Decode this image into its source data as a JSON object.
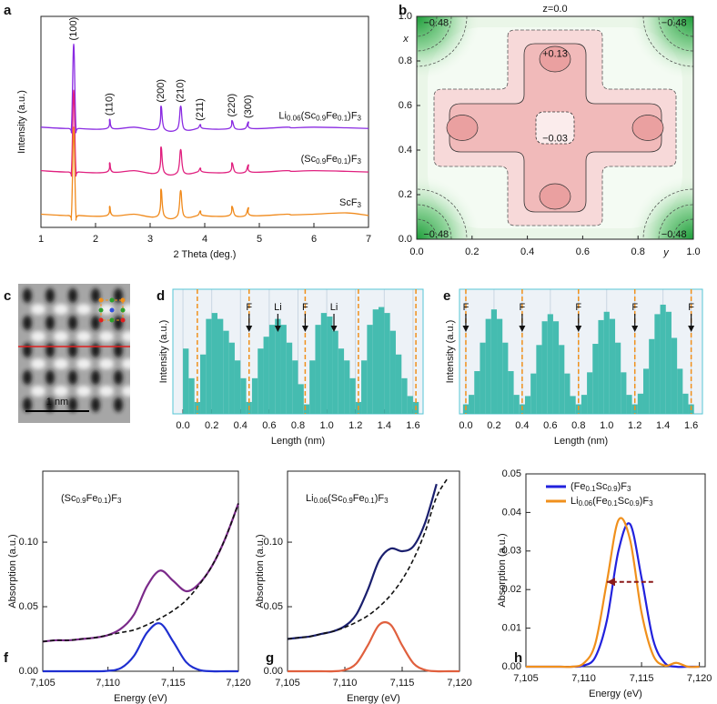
{
  "chart_data": [
    {
      "label": "a",
      "type": "line",
      "xlabel": "2 Theta (deg.)",
      "ylabel": "Intensity (a.u.)",
      "xlim": [
        1,
        7
      ],
      "ylim": [
        0,
        16
      ],
      "xticks": [
        1,
        2,
        3,
        4,
        5,
        6,
        7
      ],
      "x": [
        1,
        1.5,
        1.56,
        1.6,
        1.64,
        1.7,
        2.2,
        2.26,
        2.32,
        2.7,
        3.14,
        3.2,
        3.26,
        3.5,
        3.56,
        3.62,
        3.86,
        3.92,
        3.98,
        4.44,
        4.5,
        4.56,
        4.74,
        4.8,
        4.86,
        5.5,
        5.6,
        6.0,
        6.6,
        7.0
      ],
      "series": [
        {
          "name": "Li0.06(Sc0.9Fe0.1)F3",
          "color": "#8a2be2",
          "values": [
            7.6,
            7.5,
            7.7,
            13.9,
            7.7,
            7.5,
            7.5,
            8.2,
            7.5,
            7.6,
            7.5,
            9.2,
            7.5,
            7.5,
            9.2,
            7.5,
            7.5,
            7.8,
            7.5,
            7.5,
            8.1,
            7.5,
            7.5,
            8.0,
            7.5,
            7.6,
            7.55,
            7.6,
            7.55,
            7.5
          ]
        },
        {
          "name": "(Sc0.9Fe0.1)F3",
          "color": "#e0207f",
          "values": [
            4.3,
            4.2,
            4.4,
            10.4,
            4.4,
            4.2,
            4.2,
            4.9,
            4.2,
            4.3,
            4.2,
            6.1,
            4.2,
            4.2,
            5.9,
            4.2,
            4.2,
            4.5,
            4.2,
            4.2,
            4.9,
            4.2,
            4.2,
            4.75,
            4.2,
            4.3,
            4.25,
            4.3,
            4.25,
            4.2
          ]
        },
        {
          "name": "ScF3",
          "color": "#f08a1c",
          "values": [
            1.0,
            0.9,
            1.1,
            7.6,
            1.1,
            0.9,
            0.9,
            1.6,
            0.9,
            1.0,
            0.9,
            2.9,
            0.9,
            0.9,
            2.8,
            0.9,
            0.9,
            1.25,
            0.9,
            0.9,
            1.6,
            0.9,
            0.9,
            1.5,
            0.9,
            1.0,
            0.95,
            1.0,
            1.1,
            0.9
          ]
        }
      ],
      "peak_labels": [
        {
          "text": "(100)",
          "x": 1.6
        },
        {
          "text": "(110)",
          "x": 2.26
        },
        {
          "text": "(200)",
          "x": 3.2
        },
        {
          "text": "(210)",
          "x": 3.56
        },
        {
          "text": "(211)",
          "x": 3.92
        },
        {
          "text": "(220)",
          "x": 4.5
        },
        {
          "text": "(300)",
          "x": 4.8
        }
      ]
    },
    {
      "label": "b",
      "type": "contour",
      "title": "z=0.0",
      "xlabel": "y",
      "ylabel": "x",
      "xlim": [
        0,
        1
      ],
      "ylim": [
        0,
        1
      ],
      "xticks": [
        {
          "value": 0,
          "label": "0.0"
        },
        0.2,
        0.4,
        0.6,
        0.8,
        {
          "value": 1,
          "label": "1.0"
        }
      ],
      "yticks": [
        {
          "value": 0,
          "label": "0.0"
        },
        0.2,
        0.4,
        0.6,
        0.8,
        {
          "value": 1,
          "label": "1.0"
        }
      ],
      "contour_labels": [
        {
          "text": "−0.48",
          "at": [
            0.07,
            0.97
          ]
        },
        {
          "text": "−0.48",
          "at": [
            0.93,
            0.97
          ]
        },
        {
          "text": "−0.48",
          "at": [
            0.07,
            0.02
          ]
        },
        {
          "text": "−0.48",
          "at": [
            0.93,
            0.02
          ]
        },
        {
          "text": "+0.13",
          "at": [
            0.5,
            0.83
          ]
        },
        {
          "text": "−0.03",
          "at": [
            0.5,
            0.45
          ]
        }
      ]
    },
    {
      "label": "c",
      "type": "image",
      "scale_label": "1 nm"
    },
    {
      "label": "d",
      "type": "histogram",
      "xlabel": "Length (nm)",
      "ylabel": "Intensity (a.u.)",
      "color": "#45bcb0",
      "grid": true,
      "xlim": [
        -0.07,
        1.67
      ],
      "ylim": [
        0,
        1.05
      ],
      "xticks": [
        {
          "value": 0,
          "label": "0.0"
        },
        0.2,
        0.4,
        0.6,
        0.8,
        {
          "value": 1,
          "label": "1.0"
        },
        1.2,
        1.4,
        1.6
      ],
      "bins": [
        0,
        0.04,
        0.08,
        0.12,
        0.16,
        0.2,
        0.24,
        0.28,
        0.32,
        0.36,
        0.4,
        0.44,
        0.48,
        0.52,
        0.56,
        0.6,
        0.64,
        0.68,
        0.72,
        0.76,
        0.8,
        0.84,
        0.88,
        0.92,
        0.96,
        1,
        1.04,
        1.08,
        1.12,
        1.16,
        1.2,
        1.24,
        1.28,
        1.32,
        1.36,
        1.4,
        1.44,
        1.48,
        1.52,
        1.56,
        1.6,
        1.64
      ],
      "values": [
        0.55,
        0.3,
        0.1,
        0.5,
        0.8,
        0.85,
        0.8,
        0.7,
        0.6,
        0.45,
        0.3,
        0.1,
        0.3,
        0.55,
        0.65,
        0.75,
        0.8,
        0.75,
        0.6,
        0.45,
        0.25,
        0.08,
        0.45,
        0.75,
        0.85,
        0.82,
        0.7,
        0.55,
        0.45,
        0.3,
        0.1,
        0.45,
        0.75,
        0.88,
        0.9,
        0.85,
        0.7,
        0.5,
        0.3,
        0.15,
        0.1
      ],
      "dashed_lines": [
        0.1,
        0.46,
        0.85,
        1.22,
        1.62
      ],
      "line_color": "#f0901c",
      "markers": [
        {
          "text": "F",
          "x": 0.46
        },
        {
          "text": "Li",
          "x": 0.66
        },
        {
          "text": "F",
          "x": 0.85
        },
        {
          "text": "Li",
          "x": 1.05
        }
      ]
    },
    {
      "label": "e",
      "type": "histogram",
      "xlabel": "Length (nm)",
      "ylabel": "Intensity (a.u.)",
      "color": "#45bcb0",
      "grid": true,
      "xlim": [
        -0.045,
        1.68
      ],
      "ylim": [
        0,
        1.05
      ],
      "xticks": [
        {
          "value": 0,
          "label": "0.0"
        },
        0.2,
        0.4,
        0.6,
        0.8,
        {
          "value": 1,
          "label": "1.0"
        },
        1.2,
        1.4,
        1.6
      ],
      "bins": [
        -0.02,
        0.02,
        0.06,
        0.1,
        0.14,
        0.18,
        0.22,
        0.26,
        0.3,
        0.34,
        0.38,
        0.42,
        0.46,
        0.5,
        0.54,
        0.58,
        0.62,
        0.66,
        0.7,
        0.74,
        0.78,
        0.82,
        0.86,
        0.9,
        0.94,
        0.98,
        1.02,
        1.06,
        1.1,
        1.14,
        1.18,
        1.22,
        1.26,
        1.3,
        1.34,
        1.38,
        1.42,
        1.46,
        1.5,
        1.54,
        1.58,
        1.62
      ],
      "values": [
        0.08,
        0.16,
        0.36,
        0.6,
        0.8,
        0.88,
        0.8,
        0.6,
        0.36,
        0.16,
        0.08,
        0.15,
        0.34,
        0.58,
        0.78,
        0.84,
        0.78,
        0.58,
        0.34,
        0.15,
        0.08,
        0.16,
        0.35,
        0.59,
        0.79,
        0.86,
        0.8,
        0.6,
        0.35,
        0.16,
        0.08,
        0.17,
        0.38,
        0.63,
        0.84,
        0.92,
        0.86,
        0.64,
        0.38,
        0.17,
        0.08
      ],
      "dashed_lines": [
        0,
        0.4,
        0.8,
        1.2,
        1.6
      ],
      "line_color": "#f0901c",
      "markers": [
        {
          "text": "F",
          "x": 0
        },
        {
          "text": "F",
          "x": 0.4
        },
        {
          "text": "F",
          "x": 0.8
        },
        {
          "text": "F",
          "x": 1.2
        },
        {
          "text": "F",
          "x": 1.6
        }
      ]
    },
    {
      "label": "f",
      "type": "line",
      "xlabel": "Energy (eV)",
      "ylabel": "Absorption (a.u.)",
      "annotation": "(Sc0.9Fe0.1)F3",
      "xlim": [
        7105,
        7120
      ],
      "ylim": [
        0,
        0.155
      ],
      "xticks": [
        {
          "value": 7105,
          "label": "7,105"
        },
        {
          "value": 7110,
          "label": "7,110"
        },
        {
          "value": 7115,
          "label": "7,115"
        },
        {
          "value": 7120,
          "label": "7,120"
        }
      ],
      "yticks": [
        {
          "value": 0,
          "label": "0.00"
        },
        0.05,
        {
          "value": 0.1,
          "label": "0.10"
        }
      ],
      "x": [
        7105,
        7106,
        7107,
        7108,
        7109,
        7110,
        7111,
        7112,
        7113,
        7114,
        7115,
        7116,
        7117,
        7118,
        7119,
        7120
      ],
      "series": [
        {
          "color": "#7b2a8a",
          "values": [
            0.023,
            0.024,
            0.024,
            0.025,
            0.026,
            0.028,
            0.033,
            0.044,
            0.066,
            0.078,
            0.07,
            0.062,
            0.068,
            0.082,
            0.103,
            0.13
          ]
        },
        {
          "color": "#111111",
          "style": "dashed",
          "values": [
            0.023,
            0.024,
            0.024,
            0.025,
            0.026,
            0.028,
            0.03,
            0.032,
            0.036,
            0.041,
            0.047,
            0.055,
            0.067,
            0.082,
            0.103,
            0.13
          ]
        },
        {
          "color": "#1f2fd0",
          "values": [
            0,
            0,
            0,
            0,
            0,
            0.0003,
            0.0025,
            0.012,
            0.03,
            0.037,
            0.023,
            0.007,
            0.001,
            0,
            0,
            0
          ]
        }
      ]
    },
    {
      "label": "g",
      "type": "line",
      "xlabel": "Energy (eV)",
      "ylabel": "Absorption (a.u.)",
      "annotation": "Li0.06(Sc0.9Fe0.1)F3",
      "xlim": [
        7105,
        7120
      ],
      "ylim": [
        0,
        0.155
      ],
      "xticks": [
        {
          "value": 7105,
          "label": "7,105"
        },
        {
          "value": 7110,
          "label": "7,110"
        },
        {
          "value": 7115,
          "label": "7,115"
        },
        {
          "value": 7120,
          "label": "7,120"
        }
      ],
      "yticks": [
        {
          "value": 0,
          "label": "0.00"
        },
        0.05,
        {
          "value": 0.1,
          "label": "0.10"
        }
      ],
      "x": [
        7105,
        7106,
        7107,
        7108,
        7109,
        7110,
        7111,
        7112,
        7113,
        7114,
        7115,
        7116,
        7117,
        7118,
        7119,
        7120
      ],
      "series": [
        {
          "color": "#1a1f6e",
          "values": [
            0.025,
            0.026,
            0.027,
            0.029,
            0.031,
            0.035,
            0.044,
            0.063,
            0.086,
            0.095,
            0.093,
            0.097,
            0.115,
            0.145,
            null,
            null
          ]
        },
        {
          "color": "#111111",
          "style": "dashed",
          "values": [
            0.025,
            0.026,
            0.027,
            0.029,
            0.031,
            0.034,
            0.038,
            0.043,
            0.05,
            0.059,
            0.071,
            0.087,
            0.108,
            0.135,
            0.15,
            null
          ]
        },
        {
          "color": "#e0603e",
          "values": [
            0,
            0,
            0,
            0,
            0,
            0.001,
            0.006,
            0.02,
            0.036,
            0.036,
            0.02,
            0.006,
            0.001,
            0,
            0,
            0
          ]
        }
      ]
    },
    {
      "label": "h",
      "type": "line",
      "xlabel": "Energy (eV)",
      "ylabel": "Absorption (a.u.)",
      "legend": "upper left",
      "xlim": [
        7105,
        7120.5
      ],
      "ylim": [
        0,
        0.05
      ],
      "xticks": [
        {
          "value": 7105,
          "label": "7,105"
        },
        {
          "value": 7110,
          "label": "7,110"
        },
        {
          "value": 7115,
          "label": "7,115"
        },
        {
          "value": 7120,
          "label": "7,120"
        }
      ],
      "yticks": [
        {
          "value": 0,
          "label": "0.00"
        },
        0.01,
        0.02,
        0.03,
        0.04,
        0.05
      ],
      "x": [
        7105,
        7106,
        7107,
        7108,
        7109,
        7110,
        7111,
        7112,
        7113,
        7114,
        7115,
        7116,
        7117,
        7118,
        7119,
        7120
      ],
      "series": [
        {
          "name": "(Fe0.1Sc0.9)F3",
          "color": "#2222dd",
          "values": [
            0,
            0,
            0,
            0,
            0,
            0.0003,
            0.0025,
            0.012,
            0.03,
            0.037,
            0.023,
            0.007,
            0.001,
            0,
            0,
            0
          ]
        },
        {
          "name": "Li0.06(Fe0.1Sc0.9)F3",
          "color": "#f0901c",
          "values": [
            0,
            0,
            0,
            0,
            0,
            0.0009,
            0.006,
            0.022,
            0.038,
            0.033,
            0.014,
            0.003,
            0.0003,
            0.001,
            0,
            0
          ]
        }
      ],
      "arrow": {
        "x1": 7116,
        "x2": 7112,
        "y": 0.022,
        "color": "#8b1a1a"
      }
    }
  ]
}
